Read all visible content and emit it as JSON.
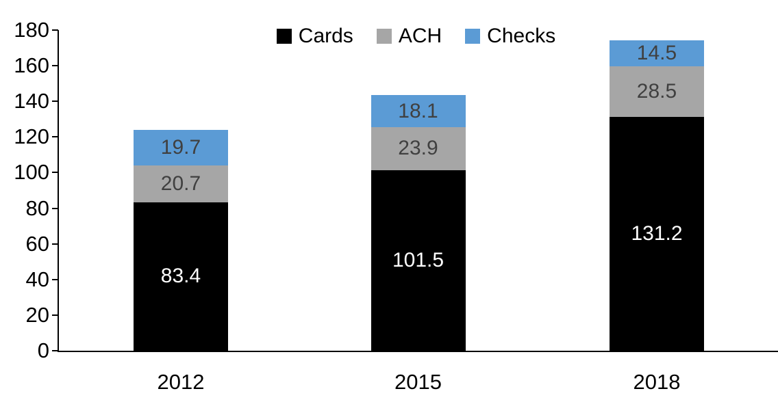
{
  "chart_data": {
    "type": "bar",
    "stacked": true,
    "title": "",
    "xlabel": "",
    "ylabel": "",
    "categories": [
      "2012",
      "2015",
      "2018"
    ],
    "series": [
      {
        "name": "Cards",
        "color": "#000000",
        "label_color": "#ffffff",
        "values": [
          83.4,
          101.5,
          131.2
        ]
      },
      {
        "name": "ACH",
        "color": "#a6a6a6",
        "label_color": "#404040",
        "values": [
          20.7,
          23.9,
          28.5
        ]
      },
      {
        "name": "Checks",
        "color": "#5b9bd5",
        "label_color": "#404040",
        "values": [
          19.7,
          18.1,
          14.5
        ]
      }
    ],
    "totals": [
      123.8,
      143.5,
      174.2
    ],
    "ylim": [
      0,
      180
    ],
    "yticks": [
      0,
      20,
      40,
      60,
      80,
      100,
      120,
      140,
      160,
      180
    ],
    "grid": false,
    "legend_position": "top-center",
    "axis_color": "#000000",
    "background_color": "#ffffff"
  }
}
